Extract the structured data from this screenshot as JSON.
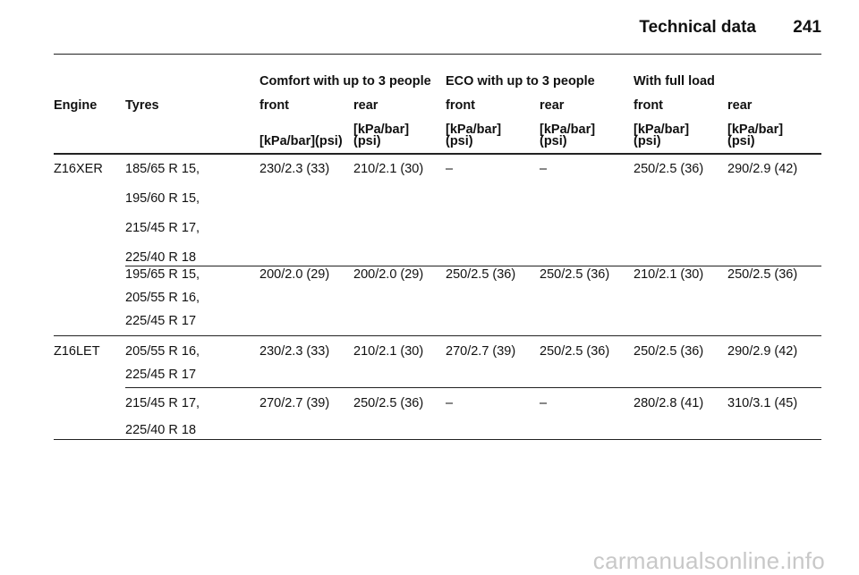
{
  "header": {
    "section": "Technical data",
    "page": "241"
  },
  "table": {
    "group_headers": [
      "Comfort with up to 3 people",
      "ECO with up to 3 people",
      "With full load"
    ],
    "columns": [
      "Engine",
      "Tyres",
      "front",
      "rear",
      "front",
      "rear",
      "front",
      "rear"
    ],
    "units": [
      [
        "[kPa/bar](psi)"
      ],
      [
        "[kPa/bar]",
        "(psi)"
      ],
      [
        "[kPa/bar]",
        "(psi)"
      ],
      [
        "[kPa/bar]",
        "(psi)"
      ],
      [
        "[kPa/bar]",
        "(psi)"
      ],
      [
        "[kPa/bar]",
        "(psi)"
      ]
    ],
    "rows": [
      {
        "engine": "Z16XER",
        "tyres": [
          "185/65 R 15,",
          "195/60 R 15,",
          "215/45 R 17,",
          "225/40 R 18"
        ],
        "values": [
          "230/2.3 (33)",
          "210/2.1 (30)",
          "–",
          "–",
          "250/2.5 (36)",
          "290/2.9 (42)"
        ]
      },
      {
        "engine": null,
        "tyres": [
          "195/65 R 15,",
          "205/55 R 16,",
          "225/45 R 17"
        ],
        "values": [
          "200/2.0 (29)",
          "200/2.0 (29)",
          "250/2.5 (36)",
          "250/2.5 (36)",
          "210/2.1 (30)",
          "250/2.5 (36)"
        ]
      },
      {
        "engine": "Z16LET",
        "tyres": [
          "205/55 R 16,",
          "225/45 R 17"
        ],
        "values": [
          "230/2.3 (33)",
          "210/2.1 (30)",
          "270/2.7 (39)",
          "250/2.5 (36)",
          "250/2.5 (36)",
          "290/2.9 (42)"
        ]
      },
      {
        "engine": null,
        "tyres": [
          "215/45 R 17,",
          "225/40 R 18"
        ],
        "values": [
          "270/2.7 (39)",
          "250/2.5 (36)",
          "–",
          "–",
          "280/2.8 (41)",
          "310/3.1 (45)"
        ]
      }
    ]
  },
  "watermark": "carmanualsonline.info"
}
